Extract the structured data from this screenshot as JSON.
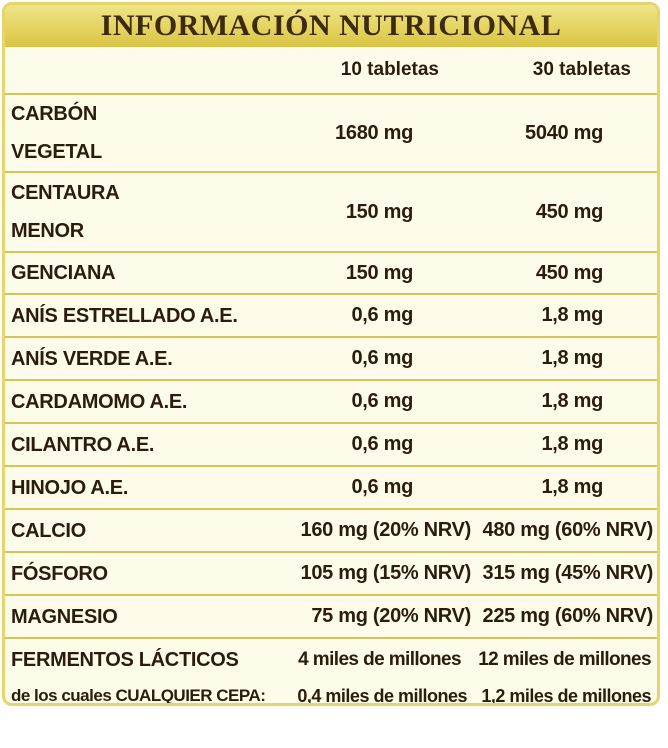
{
  "title": "INFORMACIÓN NUTRICIONAL",
  "columns": [
    "10 tabletas",
    "30 tabletas"
  ],
  "rows": [
    {
      "name": "CARBÓN VEGETAL",
      "v1": "1680 mg",
      "v2": "5040 mg"
    },
    {
      "name": "CENTAURA MENOR",
      "v1": "150 mg",
      "v2": "450 mg"
    },
    {
      "name": "GENCIANA",
      "v1": "150 mg",
      "v2": "450 mg"
    },
    {
      "name": "ANÍS ESTRELLADO A.E.",
      "v1": "0,6 mg",
      "v2": "1,8 mg"
    },
    {
      "name": "ANÍS VERDE A.E.",
      "v1": "0,6 mg",
      "v2": "1,8 mg"
    },
    {
      "name": "CARDAMOMO A.E.",
      "v1": "0,6 mg",
      "v2": "1,8 mg"
    },
    {
      "name": "CILANTRO A.E.",
      "v1": "0,6 mg",
      "v2": "1,8 mg"
    },
    {
      "name": "HINOJO A.E.",
      "v1": "0,6 mg",
      "v2": "1,8 mg"
    },
    {
      "name": "CALCIO",
      "v1": "160 mg (20% NRV)",
      "v2": "480 mg (60% NRV)"
    },
    {
      "name": "FÓSFORO",
      "v1": "105 mg (15% NRV)",
      "v2": "315 mg (45% NRV)"
    },
    {
      "name": "MAGNESIO",
      "v1": "75 mg (20% NRV)",
      "v2": "225 mg (60% NRV)"
    },
    {
      "name": "FERMENTOS LÁCTICOS",
      "v1": "4 miles de millones",
      "v2": "12 miles de millones"
    }
  ],
  "strain_row": {
    "name": "de los cuales CUALQUIER CEPA:",
    "v1": "0,4 miles de millones",
    "v2": "1,2 miles de millones"
  },
  "colors": {
    "title_bar": "#e3d25c",
    "border": "#e6d46c",
    "background": "#fdfbe9",
    "text": "#2b1d0e"
  }
}
